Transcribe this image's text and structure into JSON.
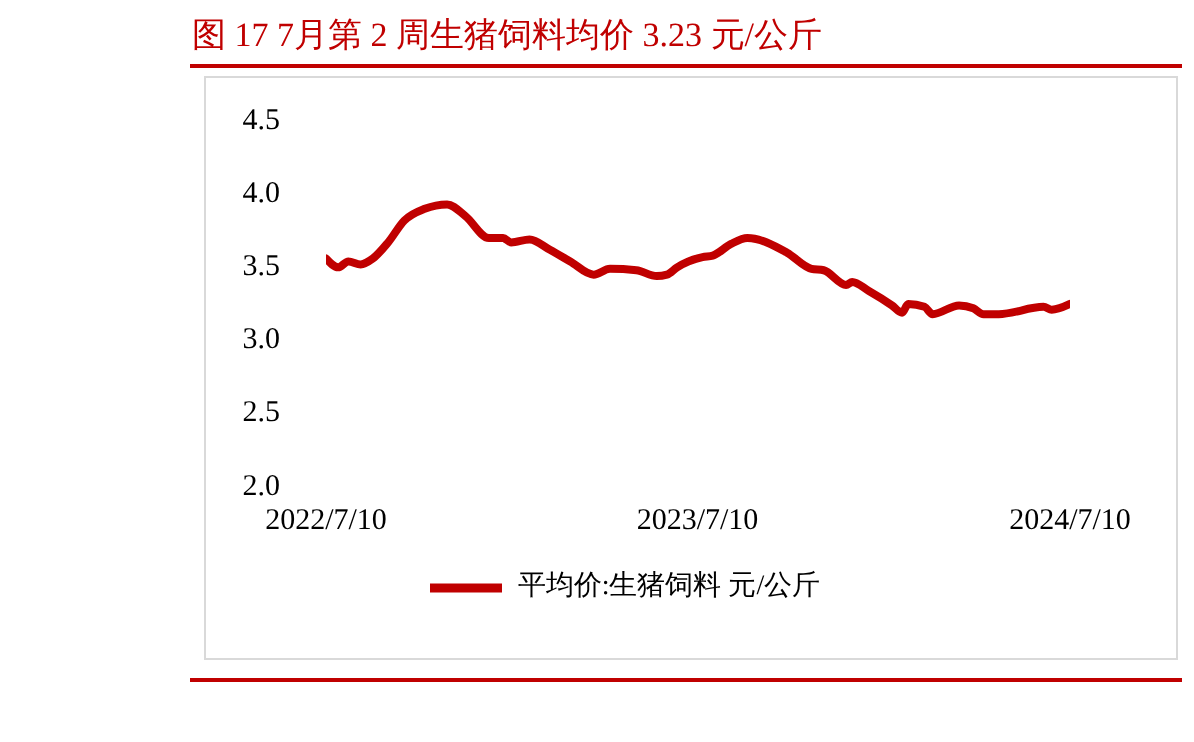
{
  "chart_data": {
    "type": "line",
    "title": "图 17 7月第 2 周生猪饲料均价 3.23 元/公斤",
    "x": [
      "2022-07-10",
      "2022-07-22",
      "2022-08-01",
      "2022-08-13",
      "2022-08-25",
      "2022-09-09",
      "2022-09-25",
      "2022-10-15",
      "2022-11-06",
      "2022-11-24",
      "2022-12-17",
      "2022-12-31",
      "2023-01-08",
      "2023-01-26",
      "2023-02-15",
      "2023-03-07",
      "2023-03-30",
      "2023-04-15",
      "2023-05-11",
      "2023-05-31",
      "2023-06-10",
      "2023-06-20",
      "2023-07-15",
      "2023-07-25",
      "2023-08-12",
      "2023-08-28",
      "2023-10-06",
      "2023-10-30",
      "2023-11-11",
      "2023-12-03",
      "2023-12-09",
      "2023-12-25",
      "2024-01-17",
      "2024-01-27",
      "2024-02-02",
      "2024-02-18",
      "2024-02-26",
      "2024-03-23",
      "2024-04-06",
      "2024-04-16",
      "2024-05-01",
      "2024-06-14",
      "2024-06-22",
      "2024-07-10"
    ],
    "series": [
      {
        "name": "平均价:生猪饲料 元/公斤",
        "color": "#c00000",
        "values": [
          3.54,
          3.48,
          3.52,
          3.5,
          3.54,
          3.65,
          3.8,
          3.88,
          3.91,
          3.83,
          3.68,
          3.68,
          3.65,
          3.67,
          3.6,
          3.52,
          3.43,
          3.47,
          3.46,
          3.42,
          3.43,
          3.48,
          3.55,
          3.56,
          3.64,
          3.68,
          3.58,
          3.47,
          3.46,
          3.36,
          3.38,
          3.32,
          3.22,
          3.17,
          3.23,
          3.21,
          3.16,
          3.22,
          3.2,
          3.16,
          3.16,
          3.21,
          3.19,
          3.23
        ]
      }
    ],
    "xlim": [
      "2022-07-10",
      "2024-07-10"
    ],
    "xticks": [
      {
        "value": "2022-07-10",
        "label": "2022/7/10"
      },
      {
        "value": "2023-07-10",
        "label": "2023/7/10"
      },
      {
        "value": "2024-07-10",
        "label": "2024/7/10"
      }
    ],
    "ylim": [
      2.0,
      4.5
    ],
    "yticks": [
      {
        "value": 2.0,
        "label": "2.0"
      },
      {
        "value": 2.5,
        "label": "2.5"
      },
      {
        "value": 3.0,
        "label": "3.0"
      },
      {
        "value": 3.5,
        "label": "3.5"
      },
      {
        "value": 4.0,
        "label": "4.0"
      },
      {
        "value": 4.5,
        "label": "4.5"
      }
    ],
    "grid": false,
    "legend": "bottom",
    "marker": "none",
    "line_style": "solid"
  }
}
